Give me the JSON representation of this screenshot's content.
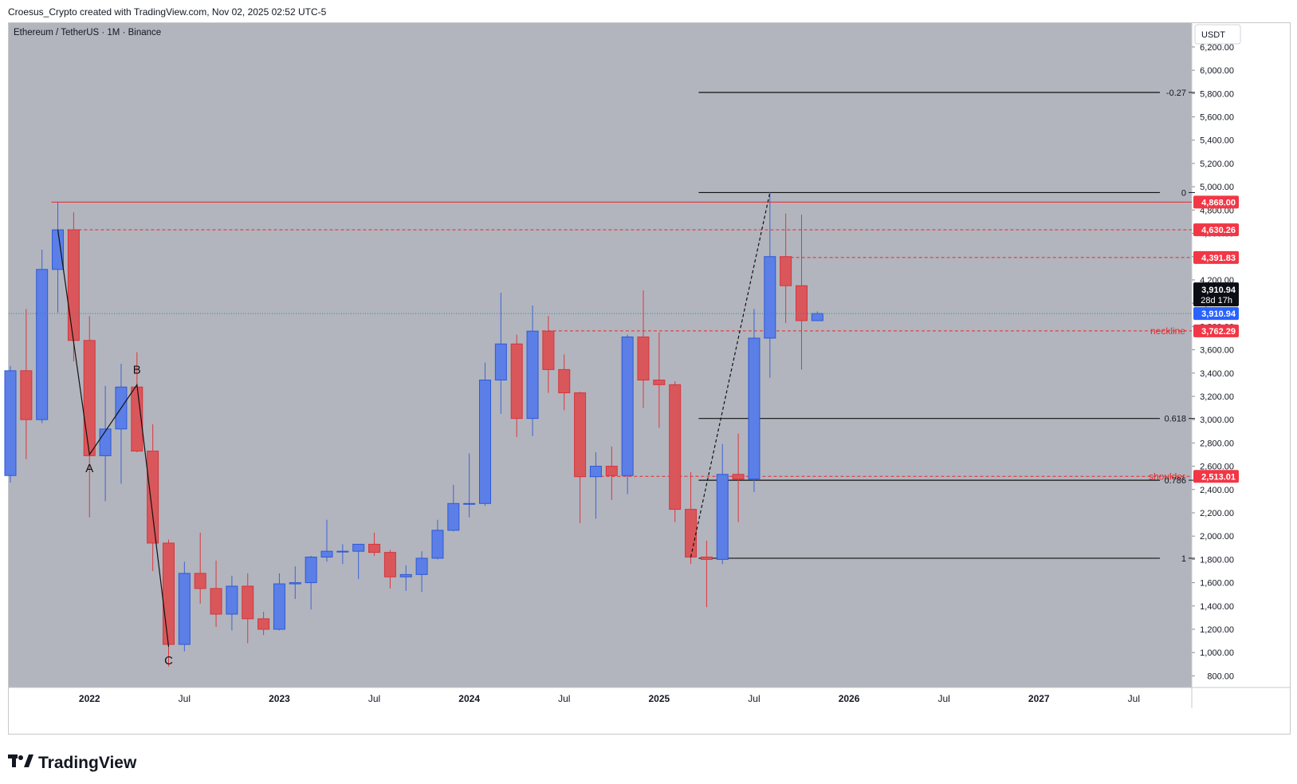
{
  "header": {
    "attribution": "Croesus_Crypto created with TradingView.com, Nov 02, 2025 02:52 UTC-5"
  },
  "footer": {
    "logo_icon": "tradingview-logo-icon",
    "logo_text": "TradingView"
  },
  "colors": {
    "plot_bg": "#b2b5be",
    "bull": "#5b7fe6",
    "bear": "#d9575b",
    "wick_bull": "#3c63d8",
    "wick_bear": "#e0363b",
    "level_red": "#e62a2a",
    "fib": "#111111"
  },
  "chart_data": {
    "type": "candlestick",
    "title": "Ethereum / TetherUS · 1M · Binance",
    "currency": "USDT",
    "ylim": [
      700,
      6350
    ],
    "y_ticks": [
      800,
      1000,
      1200,
      1400,
      1600,
      1800,
      2000,
      2200,
      2400,
      2600,
      2800,
      3000,
      3200,
      3400,
      3600,
      3800,
      4000,
      4200,
      4400,
      4600,
      4800,
      5000,
      5200,
      5400,
      5600,
      5800,
      6000,
      6200
    ],
    "y_tick_labels": [
      "800.00",
      "1,000.00",
      "1,200.00",
      "1,400.00",
      "1,600.00",
      "1,800.00",
      "2,000.00",
      "2,200.00",
      "2,400.00",
      "2,600.00",
      "2,800.00",
      "3,000.00",
      "3,200.00",
      "3,400.00",
      "3,600.00",
      "3,800.00",
      "4,000.00",
      "4,200.00",
      "4,400.00",
      "4,600.00",
      "4,800.00",
      "5,000.00",
      "5,200.00",
      "5,400.00",
      "5,600.00",
      "5,800.00",
      "6,000.00",
      "6,200.00"
    ],
    "x_labels": [
      {
        "label": "2022",
        "month": "2022-01",
        "bold": true
      },
      {
        "label": "Jul",
        "month": "2022-07",
        "bold": false
      },
      {
        "label": "2023",
        "month": "2023-01",
        "bold": true
      },
      {
        "label": "Jul",
        "month": "2023-07",
        "bold": false
      },
      {
        "label": "2024",
        "month": "2024-01",
        "bold": true
      },
      {
        "label": "Jul",
        "month": "2024-07",
        "bold": false
      },
      {
        "label": "2025",
        "month": "2025-01",
        "bold": true
      },
      {
        "label": "Jul",
        "month": "2025-07",
        "bold": false
      },
      {
        "label": "2026",
        "month": "2026-01",
        "bold": true
      },
      {
        "label": "Jul",
        "month": "2026-07",
        "bold": false
      },
      {
        "label": "2027",
        "month": "2027-01",
        "bold": true
      },
      {
        "label": "Jul",
        "month": "2027-07",
        "bold": false
      }
    ],
    "candles": [
      {
        "t": "2021-08",
        "o": 2520,
        "h": 3460,
        "l": 2460,
        "c": 3420
      },
      {
        "t": "2021-09",
        "o": 3420,
        "h": 3950,
        "l": 2660,
        "c": 3000
      },
      {
        "t": "2021-10",
        "o": 3000,
        "h": 4460,
        "l": 2970,
        "c": 4290
      },
      {
        "t": "2021-11",
        "o": 4290,
        "h": 4868,
        "l": 3920,
        "c": 4630
      },
      {
        "t": "2021-12",
        "o": 4630,
        "h": 4780,
        "l": 3500,
        "c": 3680
      },
      {
        "t": "2022-01",
        "o": 3680,
        "h": 3890,
        "l": 2160,
        "c": 2690
      },
      {
        "t": "2022-02",
        "o": 2690,
        "h": 3290,
        "l": 2300,
        "c": 2920
      },
      {
        "t": "2022-03",
        "o": 2920,
        "h": 3480,
        "l": 2450,
        "c": 3280
      },
      {
        "t": "2022-04",
        "o": 3280,
        "h": 3580,
        "l": 2720,
        "c": 2730
      },
      {
        "t": "2022-05",
        "o": 2730,
        "h": 2960,
        "l": 1700,
        "c": 1940
      },
      {
        "t": "2022-06",
        "o": 1940,
        "h": 1970,
        "l": 880,
        "c": 1070
      },
      {
        "t": "2022-07",
        "o": 1070,
        "h": 1780,
        "l": 1010,
        "c": 1680
      },
      {
        "t": "2022-08",
        "o": 1680,
        "h": 2030,
        "l": 1420,
        "c": 1550
      },
      {
        "t": "2022-09",
        "o": 1550,
        "h": 1790,
        "l": 1220,
        "c": 1330
      },
      {
        "t": "2022-10",
        "o": 1330,
        "h": 1660,
        "l": 1190,
        "c": 1570
      },
      {
        "t": "2022-11",
        "o": 1570,
        "h": 1680,
        "l": 1080,
        "c": 1290
      },
      {
        "t": "2022-12",
        "o": 1290,
        "h": 1350,
        "l": 1150,
        "c": 1200
      },
      {
        "t": "2023-01",
        "o": 1200,
        "h": 1680,
        "l": 1190,
        "c": 1590
      },
      {
        "t": "2023-02",
        "o": 1590,
        "h": 1740,
        "l": 1460,
        "c": 1600
      },
      {
        "t": "2023-03",
        "o": 1600,
        "h": 1830,
        "l": 1370,
        "c": 1820
      },
      {
        "t": "2023-04",
        "o": 1820,
        "h": 2140,
        "l": 1780,
        "c": 1870
      },
      {
        "t": "2023-05",
        "o": 1870,
        "h": 1930,
        "l": 1760,
        "c": 1870
      },
      {
        "t": "2023-06",
        "o": 1870,
        "h": 1930,
        "l": 1630,
        "c": 1930
      },
      {
        "t": "2023-07",
        "o": 1930,
        "h": 2030,
        "l": 1830,
        "c": 1860
      },
      {
        "t": "2023-08",
        "o": 1860,
        "h": 1880,
        "l": 1550,
        "c": 1650
      },
      {
        "t": "2023-09",
        "o": 1650,
        "h": 1750,
        "l": 1530,
        "c": 1670
      },
      {
        "t": "2023-10",
        "o": 1670,
        "h": 1870,
        "l": 1520,
        "c": 1810
      },
      {
        "t": "2023-11",
        "o": 1810,
        "h": 2140,
        "l": 1800,
        "c": 2050
      },
      {
        "t": "2023-12",
        "o": 2050,
        "h": 2440,
        "l": 2040,
        "c": 2280
      },
      {
        "t": "2024-01",
        "o": 2280,
        "h": 2710,
        "l": 2160,
        "c": 2280
      },
      {
        "t": "2024-02",
        "o": 2280,
        "h": 3490,
        "l": 2260,
        "c": 3340
      },
      {
        "t": "2024-03",
        "o": 3340,
        "h": 4090,
        "l": 3050,
        "c": 3650
      },
      {
        "t": "2024-04",
        "o": 3650,
        "h": 3730,
        "l": 2850,
        "c": 3010
      },
      {
        "t": "2024-05",
        "o": 3010,
        "h": 3980,
        "l": 2860,
        "c": 3760
      },
      {
        "t": "2024-06",
        "o": 3760,
        "h": 3890,
        "l": 3230,
        "c": 3430
      },
      {
        "t": "2024-07",
        "o": 3430,
        "h": 3560,
        "l": 3080,
        "c": 3230
      },
      {
        "t": "2024-08",
        "o": 3230,
        "h": 3240,
        "l": 2110,
        "c": 2510
      },
      {
        "t": "2024-09",
        "o": 2510,
        "h": 2720,
        "l": 2150,
        "c": 2600
      },
      {
        "t": "2024-10",
        "o": 2600,
        "h": 2770,
        "l": 2310,
        "c": 2520
      },
      {
        "t": "2024-11",
        "o": 2520,
        "h": 3730,
        "l": 2360,
        "c": 3710
      },
      {
        "t": "2024-12",
        "o": 3710,
        "h": 4110,
        "l": 3100,
        "c": 3340
      },
      {
        "t": "2025-01",
        "o": 3340,
        "h": 3750,
        "l": 2930,
        "c": 3300
      },
      {
        "t": "2025-02",
        "o": 3300,
        "h": 3330,
        "l": 2120,
        "c": 2230
      },
      {
        "t": "2025-03",
        "o": 2230,
        "h": 2550,
        "l": 1760,
        "c": 1820
      },
      {
        "t": "2025-04",
        "o": 1820,
        "h": 1960,
        "l": 1390,
        "c": 1800
      },
      {
        "t": "2025-05",
        "o": 1800,
        "h": 2790,
        "l": 1760,
        "c": 2530
      },
      {
        "t": "2025-06",
        "o": 2530,
        "h": 2880,
        "l": 2120,
        "c": 2490
      },
      {
        "t": "2025-07",
        "o": 2490,
        "h": 3950,
        "l": 2380,
        "c": 3700
      },
      {
        "t": "2025-08",
        "o": 3700,
        "h": 4950,
        "l": 3360,
        "c": 4400
      },
      {
        "t": "2025-09",
        "o": 4400,
        "h": 4770,
        "l": 3830,
        "c": 4150
      },
      {
        "t": "2025-10",
        "o": 4150,
        "h": 4760,
        "l": 3430,
        "c": 3850
      },
      {
        "t": "2025-11",
        "o": 3850,
        "h": 3930,
        "l": 3850,
        "c": 3910.94
      }
    ],
    "horizontal_levels": [
      {
        "price": 4868.0,
        "label": "4,868.00",
        "style": "solid",
        "color": "#e62a2a",
        "from": "2021-11"
      },
      {
        "price": 4630.26,
        "label": "4,630.26",
        "style": "dashed",
        "color": "#e62a2a",
        "from": "2021-12"
      },
      {
        "price": 4391.83,
        "label": "4,391.83",
        "style": "dashed",
        "color": "#e62a2a",
        "from": "2025-09"
      },
      {
        "price": 3762.29,
        "label": "3,762.29",
        "style": "dashed",
        "color": "#e62a2a",
        "from": "2024-06",
        "text": "neckline"
      },
      {
        "price": 2513.01,
        "label": "2,513.01",
        "style": "dashed",
        "color": "#e62a2a",
        "from": "2024-09",
        "text": "shoulder"
      }
    ],
    "fib_levels": [
      {
        "ratio": "-0.27",
        "price": 5810
      },
      {
        "ratio": "0",
        "price": 4950
      },
      {
        "ratio": "0.618",
        "price": 3010
      },
      {
        "ratio": "0.786",
        "price": 2480
      },
      {
        "ratio": "1",
        "price": 1810
      }
    ],
    "fib_from": "2025-04",
    "abc_points": [
      {
        "label": "",
        "t": "2021-11",
        "p": 4630
      },
      {
        "label": "A",
        "t": "2022-01",
        "p": 2700
      },
      {
        "label": "B",
        "t": "2022-04",
        "p": 3300
      },
      {
        "label": "C",
        "t": "2022-06",
        "p": 1050
      }
    ],
    "fib_trend": [
      {
        "t": "2025-03",
        "p": 1820
      },
      {
        "t": "2025-08",
        "p": 4950
      }
    ],
    "current_price": {
      "label": "3,910.94",
      "countdown": "28d 17h",
      "price": 3910.94
    }
  }
}
